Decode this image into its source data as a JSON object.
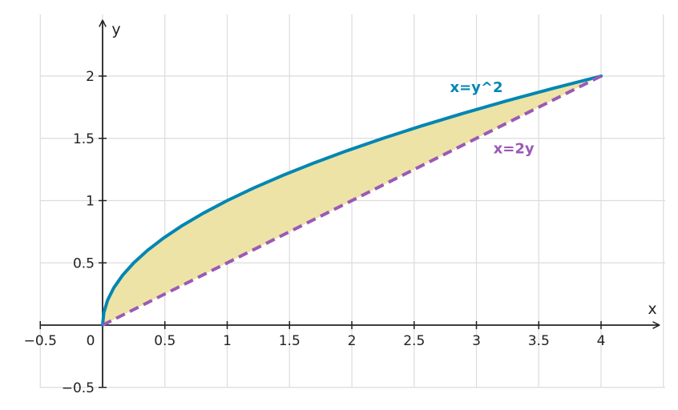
{
  "chart_data": {
    "type": "line",
    "xlabel": "x",
    "ylabel": "y",
    "xlim": [
      -0.5,
      4.5
    ],
    "ylim": [
      -0.5,
      2.4
    ],
    "grid": true,
    "x_ticks": [
      -0.5,
      0,
      0.5,
      1,
      1.5,
      2,
      2.5,
      3,
      3.5,
      4
    ],
    "x_tick_labels": [
      "−0.5",
      "0",
      "0.5",
      "1",
      "1.5",
      "2",
      "2.5",
      "3",
      "3.5",
      "4"
    ],
    "y_ticks": [
      -0.5,
      0.5,
      1,
      1.5,
      2
    ],
    "y_tick_labels": [
      "−0.5",
      "0.5",
      "1",
      "1.5",
      "2"
    ],
    "series": [
      {
        "name": "x=y^2",
        "color": "#0086b3",
        "style": "solid",
        "points": [
          [
            0,
            0
          ],
          [
            0.01,
            0.1
          ],
          [
            0.04,
            0.2
          ],
          [
            0.09,
            0.3
          ],
          [
            0.16,
            0.4
          ],
          [
            0.25,
            0.5
          ],
          [
            0.36,
            0.6
          ],
          [
            0.49,
            0.7
          ],
          [
            0.64,
            0.8
          ],
          [
            0.81,
            0.9
          ],
          [
            1,
            1
          ],
          [
            1.21,
            1.1
          ],
          [
            1.44,
            1.2
          ],
          [
            1.69,
            1.3
          ],
          [
            1.96,
            1.4
          ],
          [
            2.25,
            1.5
          ],
          [
            2.56,
            1.6
          ],
          [
            2.89,
            1.7
          ],
          [
            3.24,
            1.8
          ],
          [
            3.61,
            1.9
          ],
          [
            4,
            2
          ]
        ]
      },
      {
        "name": "x=2y",
        "color": "#9b59b6",
        "style": "dashed",
        "points": [
          [
            0,
            0
          ],
          [
            4,
            2
          ]
        ]
      }
    ],
    "shaded_region": {
      "between": [
        "x=y^2",
        "x=2y"
      ],
      "y_range": [
        0,
        2
      ],
      "color": "#ede3a6"
    },
    "annotations": [
      {
        "text": "x=y^2",
        "color": "#0086b3",
        "x": 3.0,
        "y": 1.87
      },
      {
        "text": "x=2y",
        "color": "#9b59b6",
        "x": 3.3,
        "y": 1.38
      }
    ]
  }
}
